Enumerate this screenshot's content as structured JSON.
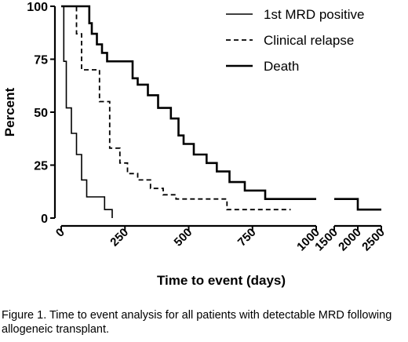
{
  "chart_data": {
    "type": "line",
    "subtype": "step",
    "ylabel": "Percent",
    "xlabel": "Time to event (days)",
    "ylim": [
      0,
      100
    ],
    "yticks": [
      0,
      25,
      50,
      75,
      100
    ],
    "x_axis_broken": true,
    "x_segments": [
      {
        "range": [
          0,
          1000
        ],
        "ticks": [
          0,
          250,
          500,
          750,
          1000
        ]
      },
      {
        "range": [
          1500,
          2500
        ],
        "ticks": [
          1500,
          2000,
          2500
        ]
      }
    ],
    "legend_position": "top-right",
    "series": [
      {
        "name": "1st MRD positive",
        "style": "solid-thin",
        "points": [
          [
            0,
            100
          ],
          [
            10,
            74
          ],
          [
            20,
            52
          ],
          [
            40,
            40
          ],
          [
            60,
            30
          ],
          [
            80,
            18
          ],
          [
            100,
            10
          ],
          [
            170,
            4
          ],
          [
            200,
            0
          ]
        ]
      },
      {
        "name": "Clinical relapse",
        "style": "dashed",
        "points": [
          [
            0,
            100
          ],
          [
            45,
            100
          ],
          [
            60,
            87
          ],
          [
            80,
            70
          ],
          [
            130,
            70
          ],
          [
            150,
            55
          ],
          [
            190,
            33
          ],
          [
            230,
            26
          ],
          [
            260,
            21
          ],
          [
            300,
            18
          ],
          [
            350,
            14
          ],
          [
            400,
            11
          ],
          [
            450,
            9
          ],
          [
            630,
            9
          ],
          [
            650,
            4
          ],
          [
            900,
            4
          ]
        ]
      },
      {
        "name": "Death",
        "style": "solid-thick",
        "points": [
          [
            0,
            100
          ],
          [
            90,
            100
          ],
          [
            110,
            92
          ],
          [
            120,
            87
          ],
          [
            140,
            82
          ],
          [
            160,
            78
          ],
          [
            180,
            74
          ],
          [
            270,
            74
          ],
          [
            280,
            66
          ],
          [
            300,
            63
          ],
          [
            340,
            58
          ],
          [
            380,
            52
          ],
          [
            430,
            47
          ],
          [
            460,
            39
          ],
          [
            480,
            35
          ],
          [
            520,
            30
          ],
          [
            570,
            26
          ],
          [
            610,
            22
          ],
          [
            660,
            17
          ],
          [
            720,
            13
          ],
          [
            800,
            9
          ],
          [
            1000,
            9
          ],
          [
            1500,
            9
          ],
          [
            1970,
            9
          ],
          [
            2000,
            4
          ],
          [
            2500,
            4
          ]
        ]
      }
    ]
  },
  "caption": "Figure 1. Time to event analysis for all patients with detectable MRD following allogeneic transplant."
}
